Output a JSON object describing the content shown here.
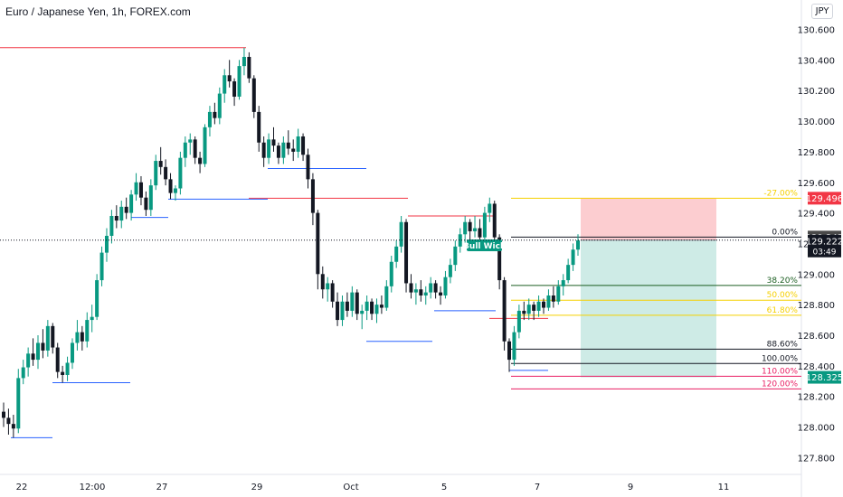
{
  "chart_data": {
    "type": "candlestick",
    "title": "Euro / Japanese Yen, 1h, FOREX.com",
    "currency": "JPY",
    "ylim": [
      127.7,
      130.72
    ],
    "y_ticks": [
      "130.600",
      "130.400",
      "130.200",
      "130.000",
      "129.800",
      "129.600",
      "129.400",
      "129.200",
      "129.000",
      "128.800",
      "128.600",
      "128.400",
      "128.200",
      "128.000",
      "127.800"
    ],
    "x_ticks": [
      "22",
      "12:00",
      "27",
      "29",
      "Oct",
      "5",
      "7",
      "9",
      "11"
    ],
    "last_price": "129.222",
    "countdown": "03:49",
    "price_tags": [
      {
        "label": "129.496",
        "price": 129.496,
        "color": "#f23645"
      },
      {
        "label": "129.242",
        "price": 129.242,
        "color": "#4a4a4a"
      },
      {
        "label": "128.325",
        "price": 128.325,
        "color": "#089981"
      }
    ],
    "fib_levels": [
      {
        "label": "-27.00%",
        "price": 129.496,
        "color": "#f5d000"
      },
      {
        "label": "0.00%",
        "price": 129.242,
        "color": "#131722"
      },
      {
        "label": "38.20%",
        "price": 128.926,
        "color": "#1b5e20"
      },
      {
        "label": "50.00%",
        "price": 128.829,
        "color": "#f5d000"
      },
      {
        "label": "61.80%",
        "price": 128.731,
        "color": "#f5d000"
      },
      {
        "label": "88.60%",
        "price": 128.509,
        "color": "#131722"
      },
      {
        "label": "100.00%",
        "price": 128.415,
        "color": "#131722"
      },
      {
        "label": "110.00%",
        "price": 128.332,
        "color": "#e91e63"
      },
      {
        "label": "120.00%",
        "price": 128.249,
        "color": "#e91e63"
      }
    ],
    "annotation": "Bull Wick",
    "position": {
      "entry": 129.222,
      "stop": 129.496,
      "target": 128.325
    },
    "swing_highs": [
      {
        "price": 130.48
      },
      {
        "price": 129.38
      },
      {
        "price": 129.496
      },
      {
        "price": 128.71
      }
    ],
    "swing_lows": [
      {
        "price": 127.93
      },
      {
        "price": 128.29
      },
      {
        "price": 129.37
      },
      {
        "price": 129.49
      },
      {
        "price": 129.69
      },
      {
        "price": 128.56
      },
      {
        "price": 128.76
      },
      {
        "price": 128.37
      }
    ],
    "candles": [
      [
        128.1,
        128.16,
        128.0,
        128.06
      ],
      [
        128.06,
        128.12,
        127.95,
        128.02
      ],
      [
        128.02,
        128.08,
        127.93,
        127.99
      ],
      [
        127.99,
        128.38,
        127.96,
        128.32
      ],
      [
        128.32,
        128.44,
        128.28,
        128.39
      ],
      [
        128.39,
        128.52,
        128.33,
        128.48
      ],
      [
        128.48,
        128.58,
        128.4,
        128.44
      ],
      [
        128.44,
        128.6,
        128.38,
        128.55
      ],
      [
        128.55,
        128.64,
        128.45,
        128.5
      ],
      [
        128.5,
        128.7,
        128.46,
        128.66
      ],
      [
        128.66,
        128.68,
        128.48,
        128.52
      ],
      [
        128.52,
        128.55,
        128.32,
        128.36
      ],
      [
        128.36,
        128.4,
        128.29,
        128.34
      ],
      [
        128.34,
        128.46,
        128.3,
        128.42
      ],
      [
        128.42,
        128.58,
        128.38,
        128.55
      ],
      [
        128.55,
        128.7,
        128.5,
        128.62
      ],
      [
        128.62,
        128.66,
        128.5,
        128.56
      ],
      [
        128.56,
        128.75,
        128.52,
        128.7
      ],
      [
        128.7,
        128.8,
        128.62,
        128.72
      ],
      [
        128.72,
        129.0,
        128.7,
        128.96
      ],
      [
        128.96,
        129.18,
        128.92,
        129.14
      ],
      [
        129.14,
        129.3,
        129.08,
        129.25
      ],
      [
        129.25,
        129.42,
        129.2,
        129.38
      ],
      [
        129.38,
        129.45,
        129.3,
        129.35
      ],
      [
        129.35,
        129.48,
        129.3,
        129.44
      ],
      [
        129.44,
        129.5,
        129.36,
        129.4
      ],
      [
        129.4,
        129.55,
        129.35,
        129.52
      ],
      [
        129.52,
        129.66,
        129.48,
        129.6
      ],
      [
        129.6,
        129.64,
        129.45,
        129.5
      ],
      [
        129.5,
        129.54,
        129.38,
        129.42
      ],
      [
        129.42,
        129.62,
        129.38,
        129.58
      ],
      [
        129.58,
        129.78,
        129.55,
        129.74
      ],
      [
        129.74,
        129.83,
        129.65,
        129.7
      ],
      [
        129.7,
        129.75,
        129.58,
        129.62
      ],
      [
        129.62,
        129.66,
        129.49,
        129.53
      ],
      [
        129.53,
        129.58,
        129.48,
        129.56
      ],
      [
        129.56,
        129.8,
        129.52,
        129.76
      ],
      [
        129.76,
        129.9,
        129.7,
        129.86
      ],
      [
        129.86,
        129.92,
        129.78,
        129.88
      ],
      [
        129.88,
        129.9,
        129.72,
        129.76
      ],
      [
        129.76,
        129.8,
        129.66,
        129.72
      ],
      [
        129.72,
        129.98,
        129.7,
        129.96
      ],
      [
        129.96,
        130.1,
        129.9,
        130.06
      ],
      [
        130.06,
        130.12,
        129.98,
        130.02
      ],
      [
        130.02,
        130.22,
        129.98,
        130.18
      ],
      [
        130.18,
        130.34,
        130.12,
        130.3
      ],
      [
        130.3,
        130.4,
        130.22,
        130.26
      ],
      [
        130.26,
        130.28,
        130.1,
        130.16
      ],
      [
        130.16,
        130.4,
        130.14,
        130.36
      ],
      [
        130.36,
        130.48,
        130.3,
        130.42
      ],
      [
        130.42,
        130.45,
        130.25,
        130.28
      ],
      [
        130.28,
        130.3,
        130.02,
        130.06
      ],
      [
        130.06,
        130.1,
        129.8,
        129.86
      ],
      [
        129.86,
        129.9,
        129.7,
        129.76
      ],
      [
        129.76,
        129.92,
        129.72,
        129.88
      ],
      [
        129.88,
        129.96,
        129.8,
        129.84
      ],
      [
        129.84,
        129.86,
        129.72,
        129.76
      ],
      [
        129.76,
        129.9,
        129.72,
        129.86
      ],
      [
        129.86,
        129.94,
        129.78,
        129.82
      ],
      [
        129.82,
        129.88,
        129.74,
        129.8
      ],
      [
        129.8,
        129.95,
        129.76,
        129.9
      ],
      [
        129.9,
        129.92,
        129.74,
        129.78
      ],
      [
        129.78,
        129.82,
        129.56,
        129.62
      ],
      [
        129.62,
        129.66,
        129.32,
        129.4
      ],
      [
        129.4,
        129.42,
        128.9,
        129.0
      ],
      [
        129.0,
        129.05,
        128.84,
        128.9
      ],
      [
        128.9,
        128.98,
        128.82,
        128.94
      ],
      [
        128.94,
        128.96,
        128.78,
        128.82
      ],
      [
        128.82,
        128.88,
        128.66,
        128.7
      ],
      [
        128.7,
        128.86,
        128.66,
        128.82
      ],
      [
        128.82,
        128.88,
        128.72,
        128.76
      ],
      [
        128.76,
        128.92,
        128.72,
        128.88
      ],
      [
        128.88,
        128.9,
        128.7,
        128.74
      ],
      [
        128.74,
        128.8,
        128.64,
        128.76
      ],
      [
        128.76,
        128.86,
        128.7,
        128.82
      ],
      [
        128.82,
        128.84,
        128.7,
        128.74
      ],
      [
        128.74,
        128.84,
        128.68,
        128.8
      ],
      [
        128.8,
        128.86,
        128.74,
        128.78
      ],
      [
        128.78,
        128.96,
        128.76,
        128.92
      ],
      [
        128.92,
        129.12,
        128.88,
        129.08
      ],
      [
        129.08,
        129.22,
        129.04,
        129.18
      ],
      [
        129.18,
        129.38,
        129.14,
        129.34
      ],
      [
        129.34,
        129.36,
        128.88,
        128.94
      ],
      [
        128.94,
        129.0,
        128.84,
        128.88
      ],
      [
        128.88,
        128.94,
        128.8,
        128.9
      ],
      [
        128.9,
        128.96,
        128.82,
        128.86
      ],
      [
        128.86,
        128.92,
        128.8,
        128.88
      ],
      [
        128.88,
        128.98,
        128.84,
        128.94
      ],
      [
        128.94,
        128.96,
        128.84,
        128.88
      ],
      [
        128.88,
        128.92,
        128.8,
        128.86
      ],
      [
        128.86,
        129.02,
        128.84,
        128.98
      ],
      [
        128.98,
        129.1,
        128.94,
        129.06
      ],
      [
        129.06,
        129.22,
        129.02,
        129.18
      ],
      [
        129.18,
        129.3,
        129.14,
        129.26
      ],
      [
        129.26,
        129.38,
        129.2,
        129.34
      ],
      [
        129.34,
        129.36,
        129.22,
        129.28
      ],
      [
        129.28,
        129.38,
        129.24,
        129.3
      ],
      [
        129.3,
        129.36,
        129.2,
        129.24
      ],
      [
        129.24,
        129.44,
        129.22,
        129.4
      ],
      [
        129.4,
        129.5,
        129.34,
        129.46
      ],
      [
        129.46,
        129.48,
        129.2,
        129.24
      ],
      [
        129.24,
        129.26,
        128.9,
        128.96
      ],
      [
        128.96,
        128.98,
        128.5,
        128.56
      ],
      [
        128.56,
        128.58,
        128.36,
        128.44
      ],
      [
        128.44,
        128.66,
        128.4,
        128.62
      ],
      [
        128.62,
        128.8,
        128.58,
        128.76
      ],
      [
        128.76,
        128.82,
        128.7,
        128.74
      ],
      [
        128.74,
        128.84,
        128.7,
        128.8
      ],
      [
        128.8,
        128.82,
        128.7,
        128.76
      ],
      [
        128.76,
        128.86,
        128.72,
        128.82
      ],
      [
        128.82,
        128.84,
        128.74,
        128.78
      ],
      [
        128.78,
        128.9,
        128.76,
        128.86
      ],
      [
        128.86,
        128.92,
        128.78,
        128.82
      ],
      [
        128.82,
        128.96,
        128.8,
        128.92
      ],
      [
        128.92,
        129.0,
        128.86,
        128.96
      ],
      [
        128.96,
        129.1,
        128.94,
        129.06
      ],
      [
        129.06,
        129.2,
        129.02,
        129.16
      ],
      [
        129.16,
        129.26,
        129.12,
        129.22
      ]
    ]
  }
}
